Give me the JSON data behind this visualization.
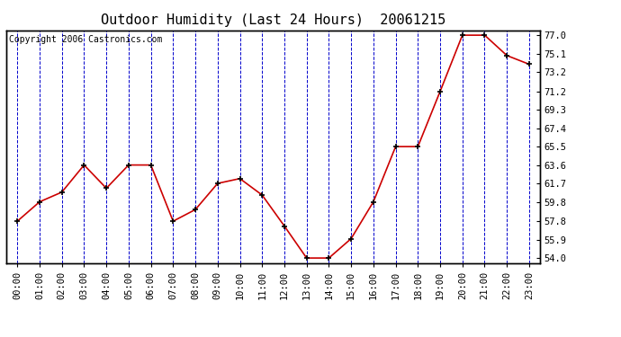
{
  "title": "Outdoor Humidity (Last 24 Hours)  20061215",
  "copyright_text": "Copyright 2006 Castronics.com",
  "x_labels": [
    "00:00",
    "01:00",
    "02:00",
    "03:00",
    "04:00",
    "05:00",
    "06:00",
    "07:00",
    "08:00",
    "09:00",
    "10:00",
    "11:00",
    "12:00",
    "13:00",
    "14:00",
    "15:00",
    "16:00",
    "17:00",
    "18:00",
    "19:00",
    "20:00",
    "21:00",
    "22:00",
    "23:00"
  ],
  "y_values": [
    57.8,
    59.8,
    60.8,
    63.6,
    61.2,
    63.6,
    63.6,
    57.8,
    59.0,
    61.7,
    62.2,
    60.5,
    57.3,
    54.0,
    54.0,
    56.0,
    59.8,
    65.5,
    65.5,
    71.2,
    77.0,
    77.0,
    74.9,
    74.0
  ],
  "y_ticks": [
    54.0,
    55.9,
    57.8,
    59.8,
    61.7,
    63.6,
    65.5,
    67.4,
    69.3,
    71.2,
    73.2,
    75.1,
    77.0
  ],
  "ylim": [
    53.5,
    77.5
  ],
  "line_color": "#cc0000",
  "marker_color": "#000000",
  "grid_color": "#0000cc",
  "bg_color": "#ffffff",
  "title_fontsize": 11,
  "tick_fontsize": 7.5,
  "copyright_fontsize": 7
}
